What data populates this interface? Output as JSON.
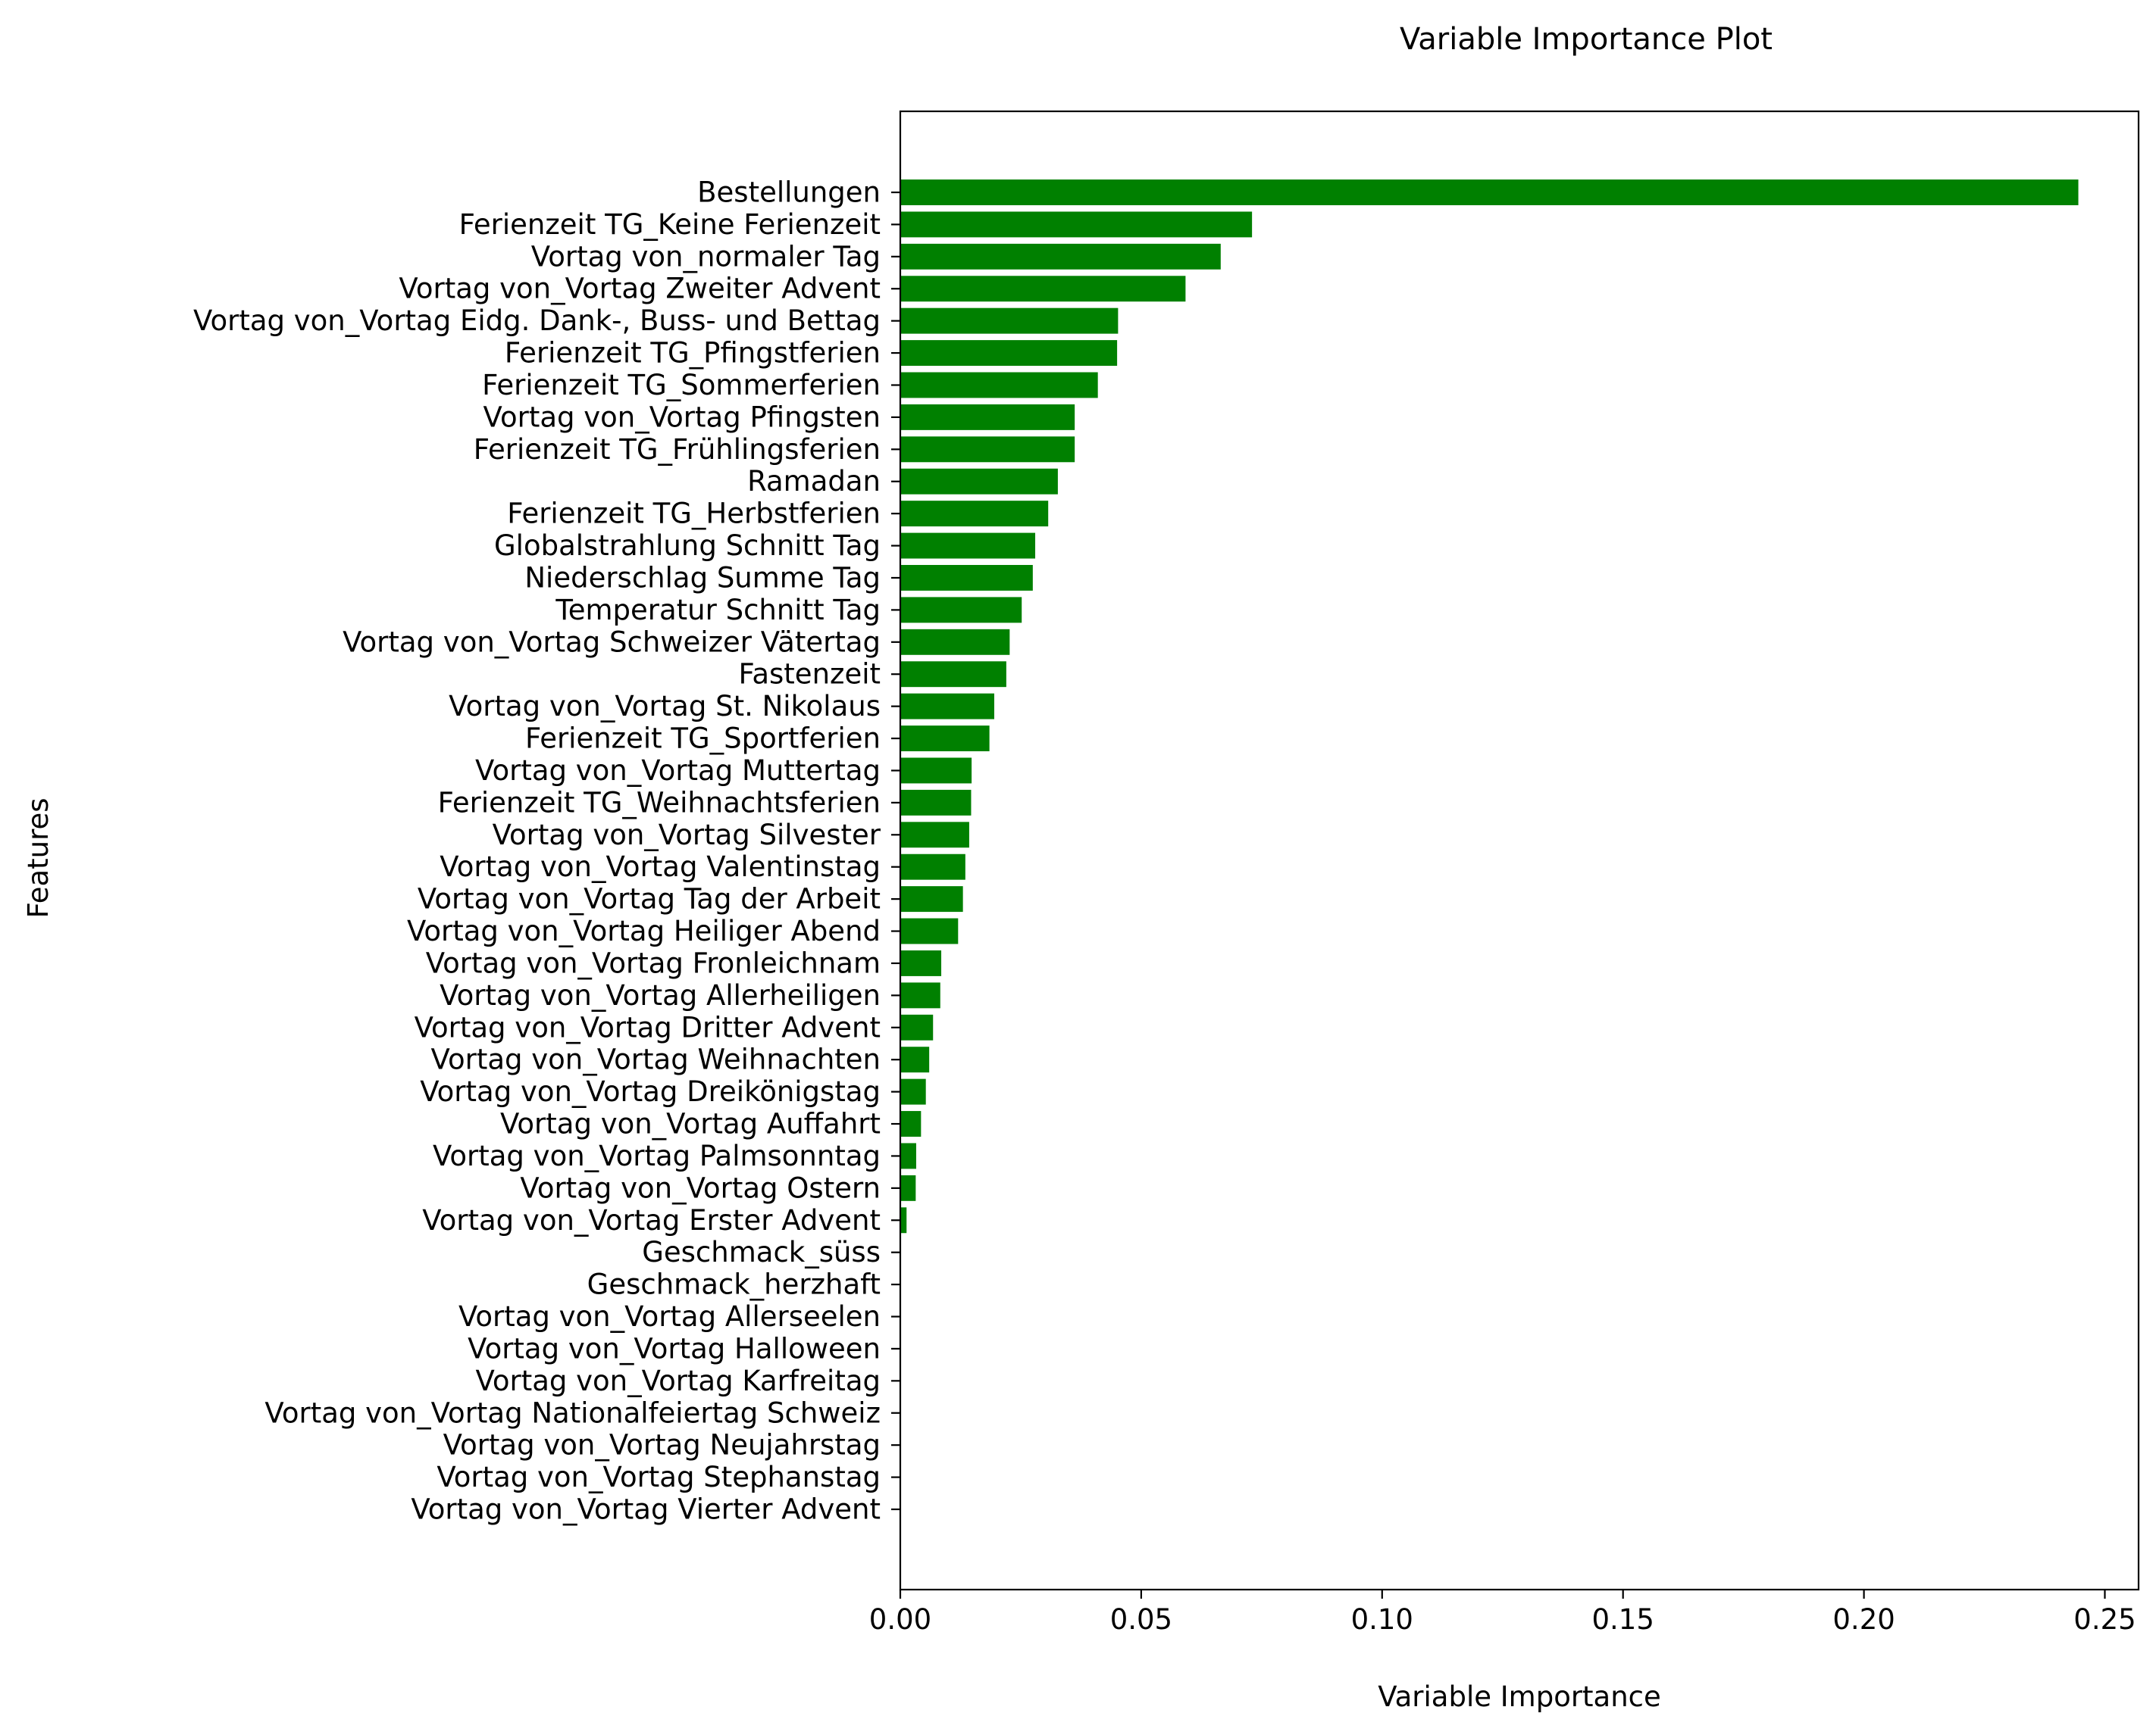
{
  "chart_data": {
    "type": "bar",
    "orientation": "horizontal",
    "title": "Variable Importance Plot",
    "xlabel": "Variable Importance",
    "ylabel": "Features",
    "xlim": [
      0,
      0.257
    ],
    "xticks": [
      "0.00",
      "0.05",
      "0.10",
      "0.15",
      "0.20",
      "0.25"
    ],
    "xtick_values": [
      0,
      0.05,
      0.1,
      0.15,
      0.2,
      0.25
    ],
    "grid": false,
    "legend": "none",
    "bar_color": "#008000",
    "categories": [
      "Bestellungen",
      "Ferienzeit TG_Keine Ferienzeit",
      "Vortag von_normaler Tag",
      "Vortag von_Vortag Zweiter Advent",
      "Vortag von_Vortag Eidg. Dank-, Buss- und Bettag",
      "Ferienzeit TG_Pfingstferien",
      "Ferienzeit TG_Sommerferien",
      "Vortag von_Vortag Pfingsten",
      "Ferienzeit TG_Frühlingsferien",
      "Ramadan",
      "Ferienzeit TG_Herbstferien",
      "Globalstrahlung Schnitt Tag",
      "Niederschlag Summe Tag",
      "Temperatur Schnitt Tag",
      "Vortag von_Vortag Schweizer Vätertag",
      "Fastenzeit",
      "Vortag von_Vortag St. Nikolaus",
      "Ferienzeit TG_Sportferien",
      "Vortag von_Vortag Muttertag",
      "Ferienzeit TG_Weihnachtsferien",
      "Vortag von_Vortag Silvester",
      "Vortag von_Vortag Valentinstag",
      "Vortag von_Vortag Tag der Arbeit",
      "Vortag von_Vortag Heiliger Abend",
      "Vortag von_Vortag Fronleichnam",
      "Vortag von_Vortag Allerheiligen",
      "Vortag von_Vortag Dritter Advent",
      "Vortag von_Vortag Weihnachten",
      "Vortag von_Vortag Dreikönigstag",
      "Vortag von_Vortag Auffahrt",
      "Vortag von_Vortag Palmsonntag",
      "Vortag von_Vortag Ostern",
      "Vortag von_Vortag Erster Advent",
      "Geschmack_süss",
      "Geschmack_herzhaft",
      "Vortag von_Vortag Allerseelen",
      "Vortag von_Vortag Halloween",
      "Vortag von_Vortag Karfreitag",
      "Vortag von_Vortag Nationalfeiertag Schweiz",
      "Vortag von_Vortag Neujahrstag",
      "Vortag von_Vortag Stephanstag",
      "Vortag von_Vortag Vierter Advent"
    ],
    "values": [
      0.2445,
      0.073,
      0.0665,
      0.0592,
      0.0452,
      0.045,
      0.041,
      0.0362,
      0.0362,
      0.0327,
      0.0307,
      0.028,
      0.0275,
      0.0252,
      0.0227,
      0.022,
      0.0195,
      0.0185,
      0.0148,
      0.0147,
      0.0143,
      0.0135,
      0.013,
      0.012,
      0.0085,
      0.0083,
      0.0068,
      0.006,
      0.0053,
      0.0043,
      0.0033,
      0.0032,
      0.0013,
      0.0,
      0.0,
      0.0,
      0.0,
      0.0,
      0.0,
      0.0,
      0.0,
      0.0
    ]
  }
}
